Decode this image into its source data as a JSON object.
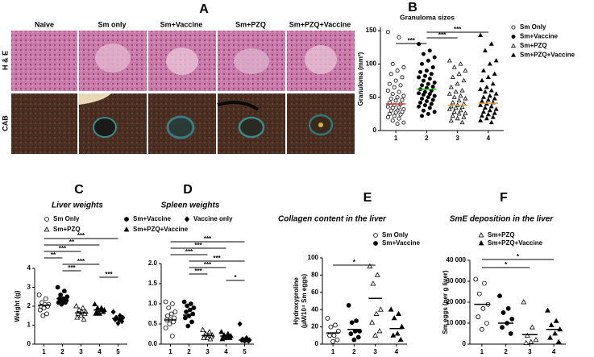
{
  "figure_a": {
    "panel": "A",
    "columns": [
      "Naive",
      "Sm only",
      "Sm+Vaccine",
      "Sm+PZQ",
      "Sm+PZQ+Vaccine"
    ],
    "rows": [
      "H & E",
      "CAB"
    ]
  },
  "chart_data": [
    {
      "panel": "B",
      "type": "dot",
      "title": "Granuloma sizes",
      "y_label": "Granuloma (mm²)",
      "xlim": [
        0.5,
        4.5
      ],
      "xticks": [
        1,
        2,
        3,
        4
      ],
      "ylim": [
        0,
        155
      ],
      "yticks": [
        0,
        50,
        100,
        150
      ],
      "series": [
        {
          "name": "Sm Only",
          "marker": "open-circle",
          "color": "#000000",
          "x": 1,
          "mean": 40,
          "mean_color": "#e03030",
          "values": [
            148,
            140,
            100,
            95,
            90,
            85,
            80,
            75,
            70,
            68,
            65,
            60,
            58,
            55,
            52,
            50,
            48,
            46,
            45,
            42,
            40,
            38,
            36,
            35,
            34,
            32,
            30,
            30,
            28,
            27,
            25,
            24,
            22,
            20,
            18,
            15,
            12,
            10
          ]
        },
        {
          "name": "Sm+Vaccine",
          "marker": "filled-circle",
          "color": "#000000",
          "x": 2,
          "mean": 62,
          "mean_color": "#20b020",
          "values": [
            130,
            120,
            115,
            110,
            105,
            100,
            95,
            90,
            88,
            85,
            82,
            80,
            78,
            75,
            72,
            70,
            68,
            66,
            64,
            62,
            60,
            58,
            56,
            55,
            54,
            52,
            50,
            48,
            46,
            44,
            42,
            40,
            38,
            36,
            34,
            30,
            28,
            25,
            22
          ]
        },
        {
          "name": "Sm+PZQ",
          "marker": "open-triangle",
          "color": "#000000",
          "x": 3,
          "mean": 38,
          "mean_color": "#e0a040",
          "values": [
            105,
            100,
            95,
            90,
            85,
            80,
            75,
            70,
            65,
            60,
            58,
            55,
            52,
            50,
            48,
            45,
            42,
            40,
            38,
            36,
            35,
            34,
            32,
            30,
            28,
            26,
            25,
            22,
            20,
            18,
            15,
            12
          ]
        },
        {
          "name": "Sm+PZQ+Vaccine",
          "marker": "filled-triangle",
          "color": "#000000",
          "x": 4,
          "mean": 41,
          "mean_color": "#e0a040",
          "values": [
            143,
            130,
            120,
            105,
            100,
            90,
            85,
            80,
            75,
            70,
            65,
            62,
            60,
            58,
            55,
            52,
            50,
            48,
            46,
            44,
            42,
            40,
            38,
            36,
            34,
            32,
            30,
            28,
            26,
            24,
            22,
            20,
            18,
            15,
            12
          ]
        }
      ],
      "brackets": [
        {
          "from": 2,
          "to": 4,
          "label": "***"
        },
        {
          "from": 2,
          "to": 3,
          "label": "***"
        },
        {
          "from": 1,
          "to": 2,
          "label": "***"
        }
      ]
    },
    {
      "panel": "C",
      "type": "dot",
      "title": "Liver weights",
      "y_label": "Weight (g)",
      "xlim": [
        0.5,
        5.5
      ],
      "xticks": [
        1,
        2,
        3,
        4,
        5
      ],
      "ylim": [
        0,
        4
      ],
      "yticks": [
        0,
        1,
        2,
        3,
        4
      ],
      "series": [
        {
          "name": "Sm Only",
          "marker": "open-circle",
          "color": "#000000",
          "x": 1,
          "mean": 2.05,
          "values": [
            2.6,
            2.4,
            2.2,
            2.1,
            2.1,
            2.0,
            2.0,
            1.9,
            1.8,
            1.6,
            1.5
          ]
        },
        {
          "name": "Sm+Vaccine",
          "marker": "filled-circle",
          "color": "#000000",
          "x": 2,
          "mean": 2.4,
          "values": [
            3.0,
            2.8,
            2.6,
            2.5,
            2.4,
            2.4,
            2.3,
            2.3,
            2.2,
            2.2,
            2.1
          ]
        },
        {
          "name": "Sm+PZQ",
          "marker": "open-triangle",
          "color": "#000000",
          "x": 3,
          "mean": 1.65,
          "values": [
            2.0,
            1.9,
            1.8,
            1.7,
            1.7,
            1.6,
            1.6,
            1.5,
            1.4,
            1.3
          ]
        },
        {
          "name": "Sm+PZQ+Vaccine",
          "marker": "filled-triangle",
          "color": "#000000",
          "x": 4,
          "mean": 1.8,
          "values": [
            2.1,
            1.9,
            1.9,
            1.8,
            1.8,
            1.7,
            1.7,
            1.6,
            1.6
          ]
        },
        {
          "name": "Vaccine only",
          "marker": "filled-diamond",
          "color": "#000000",
          "x": 5,
          "mean": 1.35,
          "values": [
            1.7,
            1.5,
            1.4,
            1.4,
            1.3,
            1.3,
            1.2,
            1.1
          ]
        }
      ],
      "brackets": [
        {
          "from": 1,
          "to": 5,
          "label": "***"
        },
        {
          "from": 1,
          "to": 4,
          "label": "**"
        },
        {
          "from": 1,
          "to": 3,
          "label": "***"
        },
        {
          "from": 1,
          "to": 2,
          "label": "**"
        },
        {
          "from": 2,
          "to": 4,
          "label": "***"
        },
        {
          "from": 2,
          "to": 3,
          "label": "***"
        },
        {
          "from": 4,
          "to": 5,
          "label": "***"
        }
      ]
    },
    {
      "panel": "D",
      "type": "dot",
      "title": "Spleen weights",
      "xlim": [
        0.5,
        5.5
      ],
      "xticks": [
        1,
        2,
        3,
        4,
        5
      ],
      "ylim": [
        0,
        2
      ],
      "yticks": [
        {
          "value": 0,
          "label": "0.0"
        },
        0.5,
        {
          "value": 1,
          "label": "1.0"
        },
        1.5,
        {
          "value": 2,
          "label": "2.0"
        }
      ],
      "series": [
        {
          "marker": "open-circle",
          "color": "#000000",
          "x": 1,
          "mean": 0.6,
          "values": [
            1.05,
            1.0,
            0.9,
            0.8,
            0.75,
            0.7,
            0.65,
            0.6,
            0.6,
            0.55,
            0.5,
            0.4,
            0.2
          ]
        },
        {
          "marker": "filled-circle",
          "color": "#000000",
          "x": 2,
          "mean": 0.72,
          "values": [
            1.05,
            1.0,
            0.95,
            0.9,
            0.85,
            0.8,
            0.75,
            0.7,
            0.65,
            0.55,
            0.45
          ]
        },
        {
          "marker": "open-triangle",
          "color": "#000000",
          "x": 3,
          "mean": 0.21,
          "values": [
            0.35,
            0.3,
            0.25,
            0.22,
            0.2,
            0.2,
            0.18,
            0.15,
            0.15,
            0.12
          ]
        },
        {
          "marker": "filled-triangle",
          "color": "#000000",
          "x": 4,
          "mean": 0.2,
          "values": [
            0.3,
            0.25,
            0.22,
            0.2,
            0.2,
            0.18,
            0.15,
            0.15,
            0.12
          ]
        },
        {
          "marker": "filled-diamond",
          "color": "#000000",
          "x": 5,
          "mean": 0.1,
          "values": [
            0.5,
            0.15,
            0.12,
            0.1,
            0.1,
            0.1,
            0.08,
            0.08
          ]
        }
      ],
      "brackets": [
        {
          "from": 1,
          "to": 5,
          "label": "***"
        },
        {
          "from": 1,
          "to": 4,
          "label": "***"
        },
        {
          "from": 1,
          "to": 3,
          "label": "***"
        },
        {
          "from": 2,
          "to": 5,
          "label": "***"
        },
        {
          "from": 2,
          "to": 4,
          "label": "***"
        },
        {
          "from": 2,
          "to": 3,
          "label": "***"
        },
        {
          "from": 4,
          "to": 5,
          "label": "*"
        }
      ]
    },
    {
      "panel": "E",
      "type": "dot",
      "title": "Collagen content in the liver",
      "y_label": [
        "Hydroxyproline",
        "(µM/10⁴ Sm eggs)"
      ],
      "xlim": [
        0.5,
        4.5
      ],
      "xticks": [
        1,
        2,
        3,
        4
      ],
      "ylim": [
        0,
        100
      ],
      "yticks": [
        0,
        20,
        40,
        60,
        80,
        100
      ],
      "series": [
        {
          "name": "Sm Only",
          "marker": "open-circle",
          "color": "#000000",
          "x": 1,
          "mean": 13,
          "values": [
            30,
            22,
            20,
            15,
            10,
            10,
            5,
            3
          ]
        },
        {
          "name": "Sm+Vaccine",
          "marker": "filled-circle",
          "color": "#000000",
          "x": 2,
          "mean": 17,
          "values": [
            45,
            27,
            25,
            15,
            15,
            12,
            8,
            5
          ]
        },
        {
          "marker": "open-triangle",
          "color": "#000000",
          "x": 3,
          "mean": 53,
          "values": [
            90,
            80,
            70,
            40,
            35,
            25,
            15,
            10
          ]
        },
        {
          "marker": "filled-triangle",
          "color": "#000000",
          "x": 4,
          "mean": 18,
          "values": [
            40,
            35,
            30,
            20,
            12,
            10,
            5
          ]
        }
      ],
      "brackets": [
        {
          "from": 1,
          "to": 3,
          "label": "*"
        }
      ]
    },
    {
      "panel": "F",
      "type": "dot",
      "title": "SmE deposition in the liver",
      "y_label": "Sm eggs (per g liver)",
      "xlim": [
        0.5,
        4.5
      ],
      "xticks": [
        1,
        2,
        3,
        4
      ],
      "ylim": [
        0,
        40000
      ],
      "yticks": [
        0,
        {
          "value": 10000,
          "label": "10 000"
        },
        {
          "value": 20000,
          "label": "20 000"
        },
        {
          "value": 30000,
          "label": "30 000"
        },
        {
          "value": 40000,
          "label": "40 000"
        }
      ],
      "series": [
        {
          "marker": "open-circle",
          "color": "#000000",
          "x": 1,
          "mean": 19000,
          "values": [
            31000,
            29000,
            24000,
            19000,
            17000,
            13000,
            10000,
            7000
          ]
        },
        {
          "marker": "filled-circle",
          "color": "#000000",
          "x": 2,
          "mean": 10000,
          "values": [
            23000,
            17000,
            15000,
            12000,
            10000,
            8000,
            5000
          ]
        },
        {
          "name": "Sm+PZQ",
          "marker": "open-triangle",
          "color": "#000000",
          "x": 3,
          "mean": 4500,
          "values": [
            20000,
            8000,
            4000,
            2000,
            1000,
            500
          ]
        },
        {
          "name": "Sm+PZQ+Vaccine",
          "marker": "filled-triangle",
          "color": "#000000",
          "x": 4,
          "mean": 7000,
          "values": [
            16000,
            11000,
            9000,
            7000,
            5000,
            3000,
            1000
          ]
        }
      ],
      "brackets": [
        {
          "from": 1,
          "to": 4,
          "label": "*"
        },
        {
          "from": 1,
          "to": 3,
          "label": "*"
        }
      ]
    }
  ]
}
